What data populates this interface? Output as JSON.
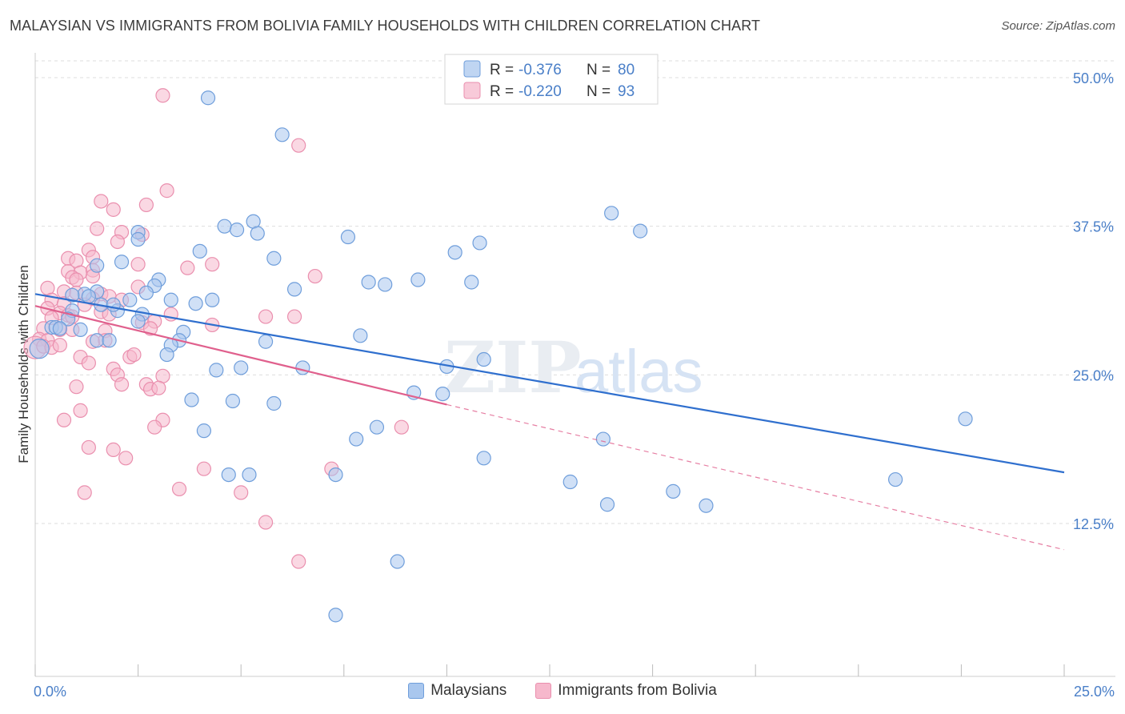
{
  "title": "MALAYSIAN VS IMMIGRANTS FROM BOLIVIA FAMILY HOUSEHOLDS WITH CHILDREN CORRELATION CHART",
  "source": "Source: ZipAtlas.com",
  "watermark": {
    "zip": "ZIP",
    "atlas": "atlas"
  },
  "colors": {
    "blue_fill": "#a9c7ee",
    "blue_stroke": "#6f9edb",
    "blue_line": "#2f6fce",
    "pink_fill": "#f6b8cc",
    "pink_stroke": "#ea8fae",
    "pink_line": "#e0608d",
    "axis_text": "#4a7fc8",
    "grid": "#dddddd"
  },
  "legend_top": {
    "rows": [
      {
        "r_label": "R =",
        "r_value": "-0.376",
        "n_label": "N =",
        "n_value": "80",
        "series": "blue"
      },
      {
        "r_label": "R =",
        "r_value": "-0.220",
        "n_label": "N =",
        "n_value": "93",
        "series": "pink"
      }
    ]
  },
  "legend_bottom": {
    "items": [
      {
        "label": "Malaysians",
        "series": "blue"
      },
      {
        "label": "Immigrants from Bolivia",
        "series": "pink"
      }
    ]
  },
  "chart_data": {
    "type": "scatter",
    "title": "MALAYSIAN VS IMMIGRANTS FROM BOLIVIA FAMILY HOUSEHOLDS WITH CHILDREN CORRELATION CHART",
    "xlabel": "",
    "ylabel": "Family Households with Children",
    "xlim": [
      0,
      25
    ],
    "ylim": [
      0,
      52
    ],
    "x_tick_labels": [
      "0.0%",
      "25.0%"
    ],
    "y_ticks": [
      12.5,
      25.0,
      37.5,
      50.0
    ],
    "y_tick_labels": [
      "12.5%",
      "25.0%",
      "37.5%",
      "50.0%"
    ],
    "grid": true,
    "series": [
      {
        "name": "Malaysians",
        "color": "blue",
        "trend": {
          "x": [
            0.0,
            25.0
          ],
          "y": [
            31.8,
            16.8
          ],
          "dashed_from": null
        },
        "points": [
          [
            4.2,
            48.3
          ],
          [
            6.0,
            45.2
          ],
          [
            14.0,
            38.6
          ],
          [
            14.7,
            37.1
          ],
          [
            4.6,
            37.5
          ],
          [
            4.9,
            37.2
          ],
          [
            5.3,
            37.9
          ],
          [
            5.4,
            36.9
          ],
          [
            2.5,
            37.0
          ],
          [
            2.5,
            36.4
          ],
          [
            7.6,
            36.6
          ],
          [
            10.8,
            36.1
          ],
          [
            10.2,
            35.3
          ],
          [
            4.0,
            35.4
          ],
          [
            5.8,
            34.8
          ],
          [
            2.1,
            34.5
          ],
          [
            1.5,
            34.2
          ],
          [
            3.0,
            33.0
          ],
          [
            8.1,
            32.8
          ],
          [
            8.5,
            32.6
          ],
          [
            9.3,
            33.0
          ],
          [
            10.6,
            32.8
          ],
          [
            6.3,
            32.2
          ],
          [
            2.9,
            32.5
          ],
          [
            2.7,
            31.9
          ],
          [
            1.5,
            32.0
          ],
          [
            1.2,
            31.8
          ],
          [
            0.9,
            31.7
          ],
          [
            1.3,
            31.6
          ],
          [
            2.3,
            31.3
          ],
          [
            3.3,
            31.3
          ],
          [
            4.3,
            31.3
          ],
          [
            3.9,
            31.0
          ],
          [
            1.6,
            30.9
          ],
          [
            2.0,
            30.4
          ],
          [
            1.9,
            30.9
          ],
          [
            0.9,
            30.4
          ],
          [
            2.6,
            30.1
          ],
          [
            2.5,
            29.5
          ],
          [
            0.8,
            29.7
          ],
          [
            0.4,
            29.0
          ],
          [
            0.5,
            29.0
          ],
          [
            0.6,
            28.9
          ],
          [
            1.1,
            28.8
          ],
          [
            3.6,
            28.6
          ],
          [
            7.9,
            28.3
          ],
          [
            1.5,
            27.9
          ],
          [
            1.8,
            27.9
          ],
          [
            3.5,
            27.9
          ],
          [
            5.6,
            27.8
          ],
          [
            3.3,
            27.5
          ],
          [
            3.2,
            26.7
          ],
          [
            0.1,
            27.2
          ],
          [
            10.9,
            26.3
          ],
          [
            10.0,
            25.7
          ],
          [
            6.5,
            25.6
          ],
          [
            4.4,
            25.4
          ],
          [
            5.0,
            25.6
          ],
          [
            9.2,
            23.5
          ],
          [
            9.9,
            23.4
          ],
          [
            3.8,
            22.9
          ],
          [
            4.8,
            22.8
          ],
          [
            5.8,
            22.6
          ],
          [
            8.3,
            20.6
          ],
          [
            22.6,
            21.3
          ],
          [
            4.1,
            20.3
          ],
          [
            7.8,
            19.6
          ],
          [
            13.8,
            19.6
          ],
          [
            10.9,
            18.0
          ],
          [
            4.7,
            16.6
          ],
          [
            5.2,
            16.6
          ],
          [
            7.3,
            16.6
          ],
          [
            13.0,
            16.0
          ],
          [
            20.9,
            16.2
          ],
          [
            15.5,
            15.2
          ],
          [
            13.9,
            14.1
          ],
          [
            16.3,
            14.0
          ],
          [
            8.8,
            9.3
          ],
          [
            7.3,
            4.8
          ]
        ]
      },
      {
        "name": "Immigrants from Bolivia",
        "color": "pink",
        "trend": {
          "x": [
            0.0,
            10.0
          ],
          "y": [
            30.8,
            22.5
          ],
          "dashed_to": [
            25.0,
            10.3
          ]
        },
        "points": [
          [
            3.1,
            48.5
          ],
          [
            6.4,
            44.3
          ],
          [
            3.2,
            40.5
          ],
          [
            1.6,
            39.6
          ],
          [
            2.7,
            39.3
          ],
          [
            1.9,
            38.9
          ],
          [
            1.5,
            37.3
          ],
          [
            2.1,
            37.0
          ],
          [
            2.6,
            36.8
          ],
          [
            2.0,
            36.2
          ],
          [
            1.3,
            35.5
          ],
          [
            0.8,
            34.8
          ],
          [
            1.0,
            34.6
          ],
          [
            1.4,
            34.9
          ],
          [
            2.5,
            34.3
          ],
          [
            4.3,
            34.3
          ],
          [
            3.7,
            34.0
          ],
          [
            0.8,
            33.7
          ],
          [
            1.1,
            33.6
          ],
          [
            1.4,
            33.8
          ],
          [
            0.9,
            33.2
          ],
          [
            1.0,
            33.0
          ],
          [
            1.4,
            33.3
          ],
          [
            6.8,
            33.3
          ],
          [
            2.5,
            32.4
          ],
          [
            0.3,
            32.3
          ],
          [
            0.7,
            32.0
          ],
          [
            1.0,
            31.9
          ],
          [
            1.6,
            31.8
          ],
          [
            1.8,
            31.6
          ],
          [
            1.4,
            31.4
          ],
          [
            2.1,
            31.3
          ],
          [
            0.4,
            31.3
          ],
          [
            0.7,
            31.0
          ],
          [
            1.2,
            30.9
          ],
          [
            0.3,
            30.6
          ],
          [
            0.6,
            30.2
          ],
          [
            0.8,
            30.0
          ],
          [
            1.6,
            30.3
          ],
          [
            1.8,
            30.1
          ],
          [
            3.3,
            30.1
          ],
          [
            0.9,
            29.9
          ],
          [
            0.4,
            29.8
          ],
          [
            5.6,
            29.9
          ],
          [
            6.3,
            29.9
          ],
          [
            2.6,
            29.4
          ],
          [
            2.9,
            29.5
          ],
          [
            4.3,
            29.2
          ],
          [
            0.2,
            28.9
          ],
          [
            0.6,
            28.8
          ],
          [
            0.9,
            28.8
          ],
          [
            1.7,
            28.7
          ],
          [
            2.8,
            28.9
          ],
          [
            0.1,
            28.0
          ],
          [
            0.3,
            27.9
          ],
          [
            1.4,
            27.8
          ],
          [
            1.7,
            27.9
          ],
          [
            0.0,
            27.3
          ],
          [
            0.2,
            27.4
          ],
          [
            0.4,
            27.3
          ],
          [
            0.6,
            27.5
          ],
          [
            1.1,
            26.5
          ],
          [
            1.3,
            26.0
          ],
          [
            2.3,
            26.5
          ],
          [
            2.4,
            26.7
          ],
          [
            1.9,
            25.5
          ],
          [
            2.0,
            25.0
          ],
          [
            3.1,
            24.9
          ],
          [
            2.1,
            24.2
          ],
          [
            2.7,
            24.2
          ],
          [
            1.0,
            24.0
          ],
          [
            2.8,
            23.8
          ],
          [
            3.0,
            23.9
          ],
          [
            1.1,
            22.0
          ],
          [
            0.7,
            21.2
          ],
          [
            3.1,
            21.2
          ],
          [
            2.9,
            20.6
          ],
          [
            8.9,
            20.6
          ],
          [
            1.3,
            18.9
          ],
          [
            1.9,
            18.7
          ],
          [
            2.2,
            18.0
          ],
          [
            4.1,
            17.1
          ],
          [
            7.2,
            17.1
          ],
          [
            3.5,
            15.4
          ],
          [
            1.2,
            15.1
          ],
          [
            5.0,
            15.1
          ],
          [
            5.6,
            12.6
          ],
          [
            6.4,
            9.3
          ]
        ]
      }
    ]
  }
}
